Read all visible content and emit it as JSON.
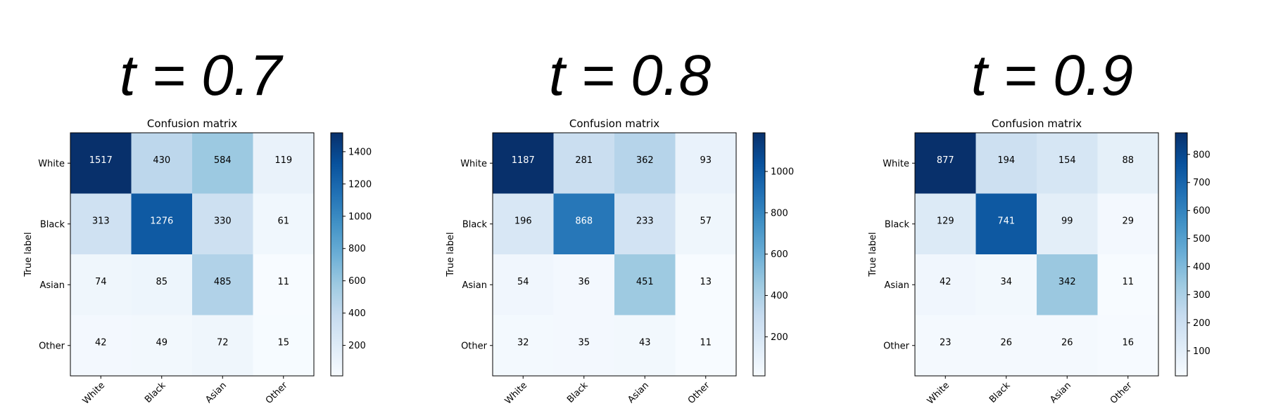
{
  "chart_data": [
    {
      "type": "heatmap",
      "heading": "t = 0.7",
      "title": "Confusion matrix",
      "ylabel": "True label",
      "xlabel": "",
      "rows": [
        "White",
        "Black",
        "Asian",
        "Other"
      ],
      "cols": [
        "White",
        "Black",
        "Asian",
        "Other"
      ],
      "values": [
        [
          1517,
          430,
          584,
          119
        ],
        [
          313,
          1276,
          330,
          61
        ],
        [
          74,
          85,
          485,
          11
        ],
        [
          42,
          49,
          72,
          15
        ]
      ],
      "colorbar_ticks": [
        200,
        400,
        600,
        800,
        1000,
        1200,
        1400
      ],
      "colormap": "Blues"
    },
    {
      "type": "heatmap",
      "heading": "t = 0.8",
      "title": "Confusion matrix",
      "ylabel": "True label",
      "xlabel": "",
      "rows": [
        "White",
        "Black",
        "Asian",
        "Other"
      ],
      "cols": [
        "White",
        "Black",
        "Asian",
        "Other"
      ],
      "values": [
        [
          1187,
          281,
          362,
          93
        ],
        [
          196,
          868,
          233,
          57
        ],
        [
          54,
          36,
          451,
          13
        ],
        [
          32,
          35,
          43,
          11
        ]
      ],
      "colorbar_ticks": [
        200,
        400,
        600,
        800,
        1000
      ],
      "colormap": "Blues"
    },
    {
      "type": "heatmap",
      "heading": "t = 0.9",
      "title": "Confusion matrix",
      "ylabel": "True label",
      "xlabel": "",
      "rows": [
        "White",
        "Black",
        "Asian",
        "Other"
      ],
      "cols": [
        "White",
        "Black",
        "Asian",
        "Other"
      ],
      "values": [
        [
          877,
          194,
          154,
          88
        ],
        [
          129,
          741,
          99,
          29
        ],
        [
          42,
          34,
          342,
          11
        ],
        [
          23,
          26,
          26,
          16
        ]
      ],
      "colorbar_ticks": [
        100,
        200,
        300,
        400,
        500,
        600,
        700,
        800
      ],
      "colormap": "Blues"
    }
  ]
}
